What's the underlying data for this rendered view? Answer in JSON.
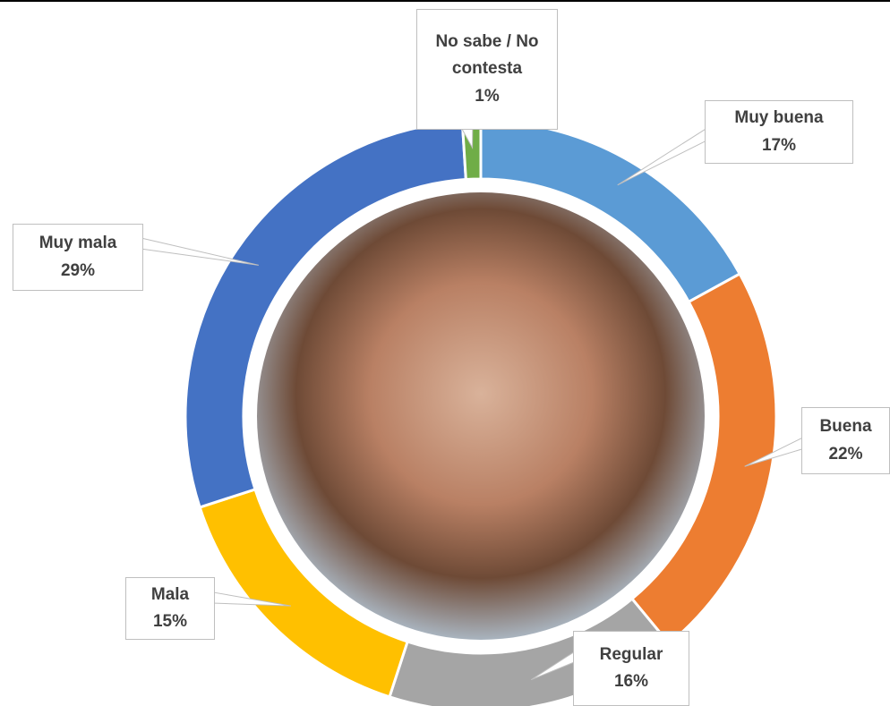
{
  "chart_data": {
    "type": "donut",
    "categories": [
      "Muy buena",
      "Buena",
      "Regular",
      "Mala",
      "Muy mala",
      "No sabe / No contesta"
    ],
    "values": [
      17,
      22,
      16,
      15,
      29,
      1
    ],
    "value_labels": [
      "17%",
      "22%",
      "16%",
      "15%",
      "29%",
      "1%"
    ],
    "colors": [
      "#5b9bd5",
      "#ed7d31",
      "#a5a5a5",
      "#ffc000",
      "#4472c4",
      "#70ad47"
    ]
  }
}
